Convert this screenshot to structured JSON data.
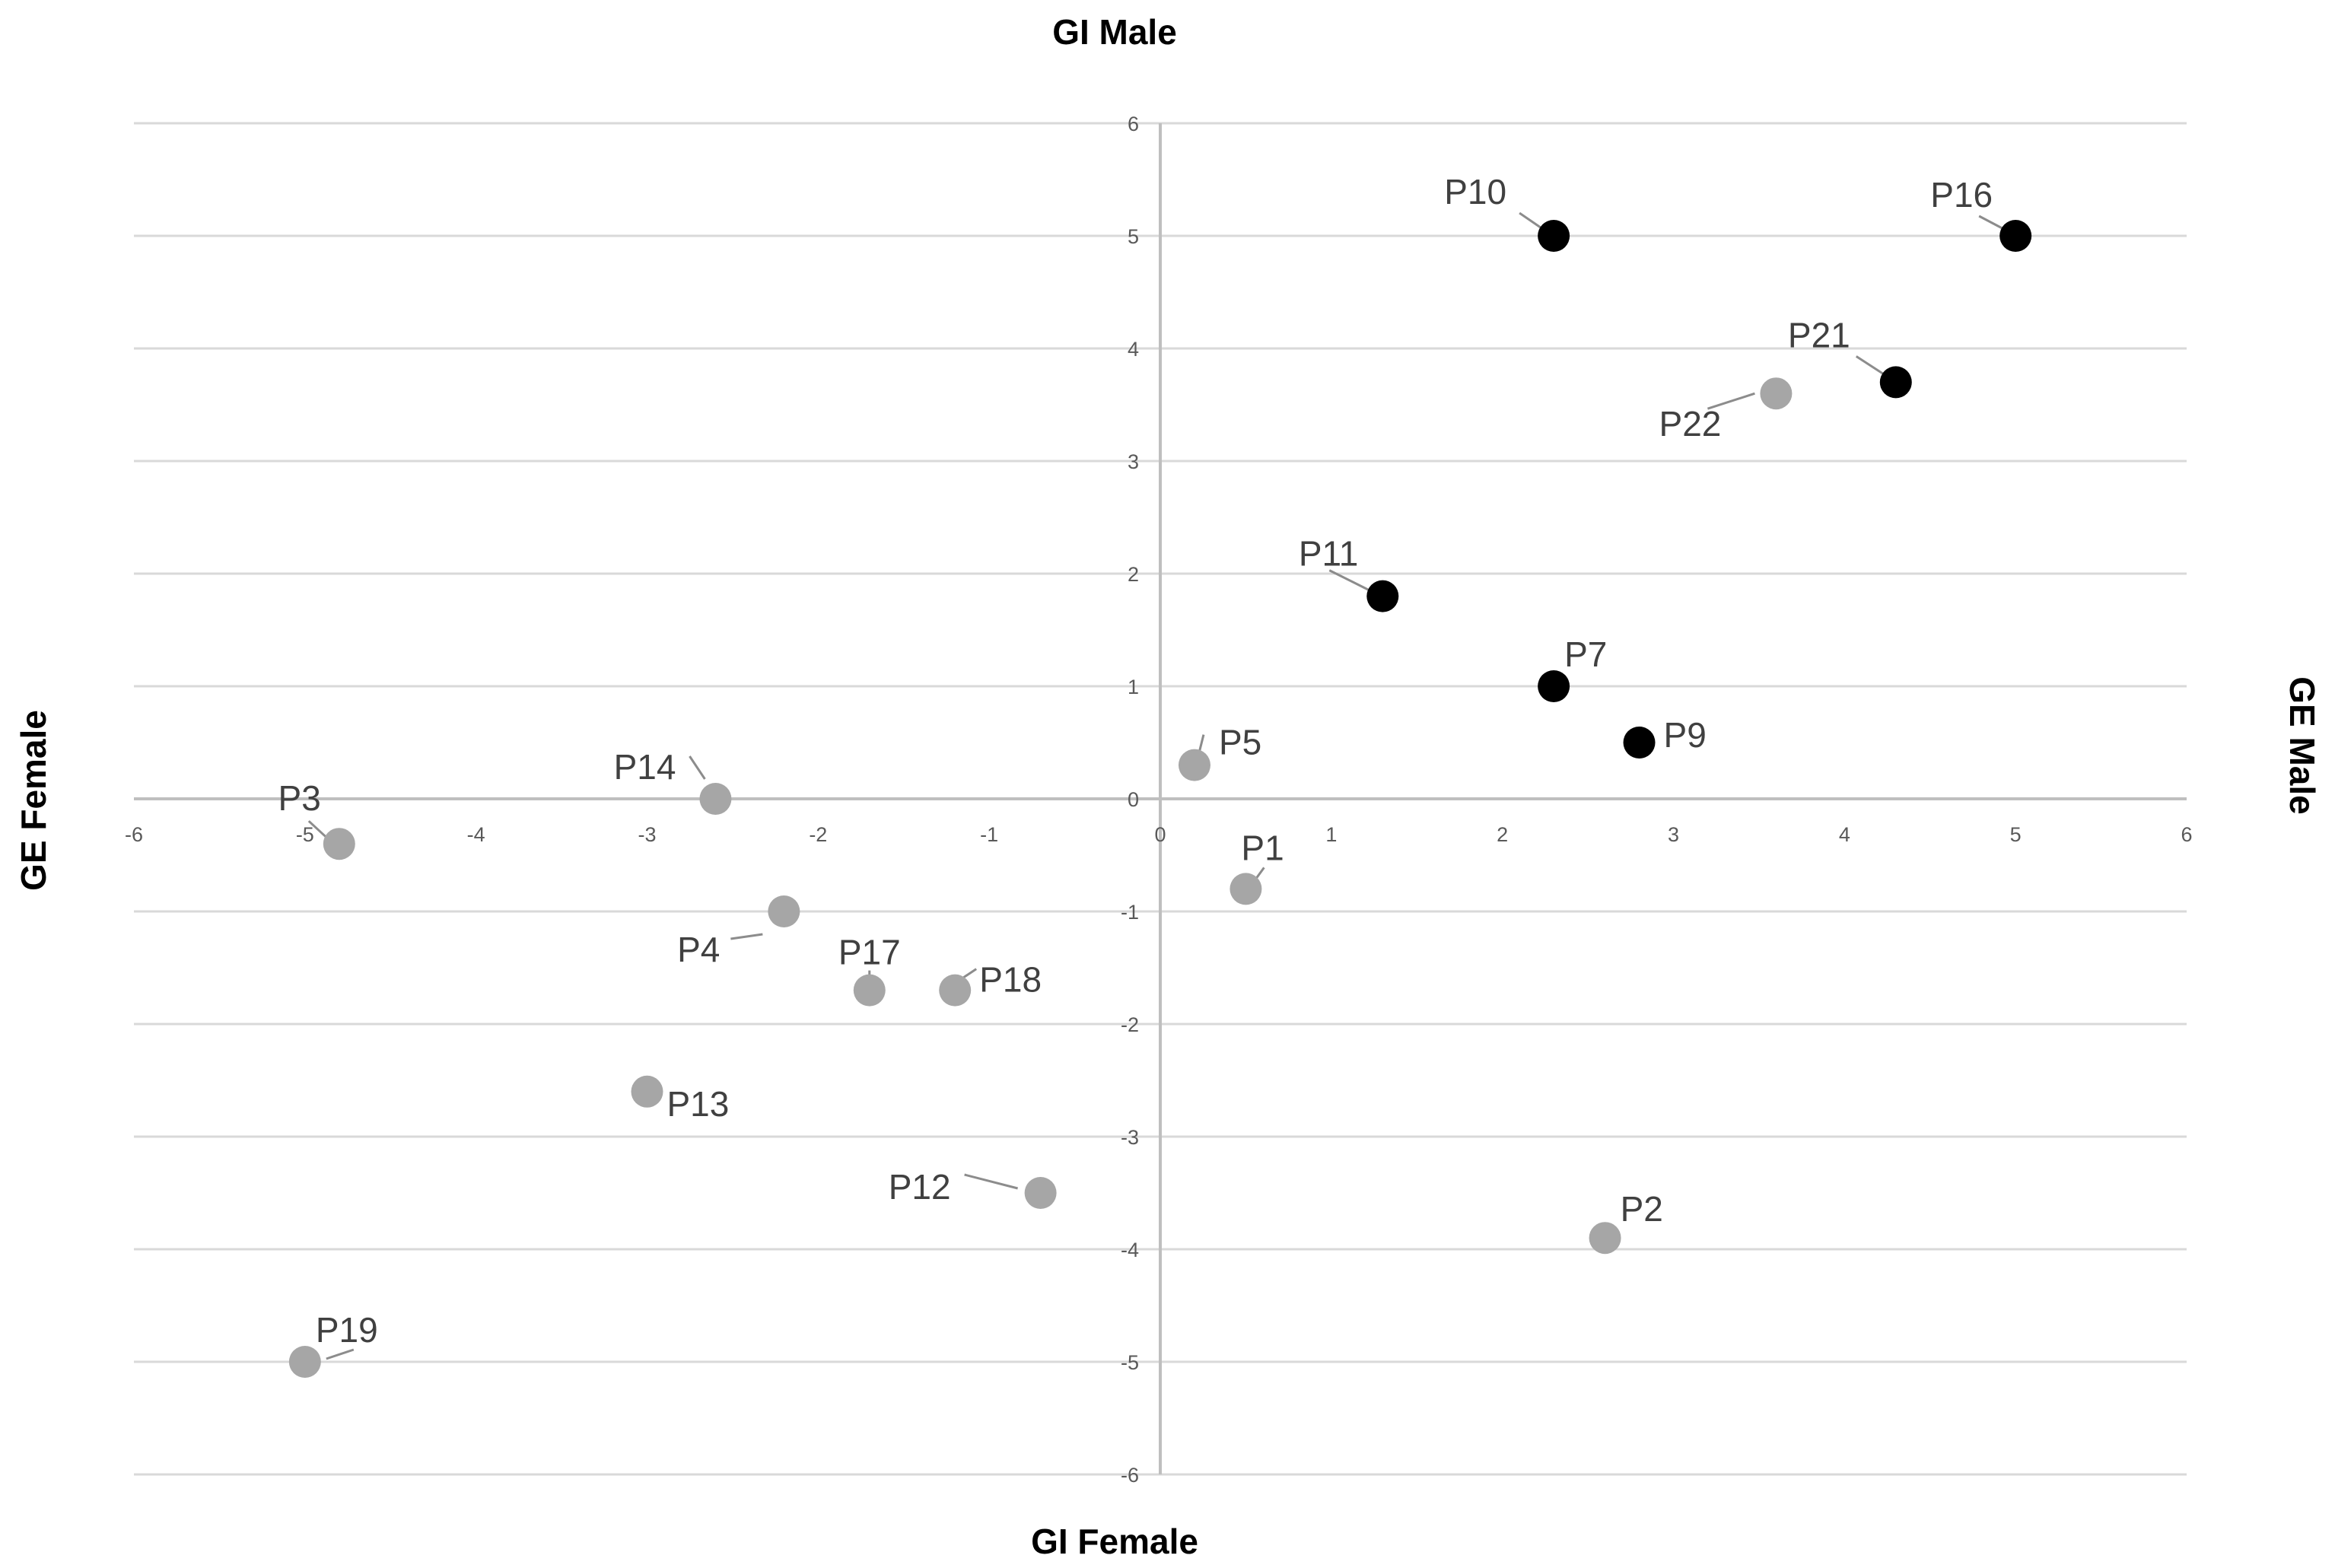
{
  "chart_data": {
    "type": "scatter",
    "title": "",
    "axis_titles": {
      "top": "GI Male",
      "bottom": "GI Female",
      "left": "GE Female",
      "right": "GE Male"
    },
    "xlim": [
      -6,
      6
    ],
    "ylim": [
      -6,
      6
    ],
    "x_ticks": [
      -6,
      -5,
      -4,
      -3,
      -2,
      -1,
      0,
      1,
      2,
      3,
      4,
      5,
      6
    ],
    "y_ticks": [
      6,
      5,
      4,
      3,
      2,
      1,
      0,
      -1,
      -2,
      -3,
      -4,
      -5,
      -6
    ],
    "grid": "horizontal",
    "colors": {
      "black": "#000000",
      "gray": "#a6a6a6",
      "grid": "#d9d9d9",
      "axis": "#bfbfbf",
      "leader": "#8c8c8c"
    },
    "points": [
      {
        "label": "P10",
        "x": 2.3,
        "y": 5.0,
        "color": "black"
      },
      {
        "label": "P16",
        "x": 5.0,
        "y": 5.0,
        "color": "black"
      },
      {
        "label": "P21",
        "x": 4.3,
        "y": 3.7,
        "color": "black"
      },
      {
        "label": "P22",
        "x": 3.6,
        "y": 3.6,
        "color": "gray"
      },
      {
        "label": "P11",
        "x": 1.3,
        "y": 1.8,
        "color": "black"
      },
      {
        "label": "P7",
        "x": 2.3,
        "y": 1.0,
        "color": "black"
      },
      {
        "label": "P9",
        "x": 2.8,
        "y": 0.5,
        "color": "black"
      },
      {
        "label": "P5",
        "x": 0.2,
        "y": 0.3,
        "color": "gray"
      },
      {
        "label": "P14",
        "x": -2.6,
        "y": 0.0,
        "color": "gray"
      },
      {
        "label": "P3",
        "x": -4.8,
        "y": -0.4,
        "color": "gray"
      },
      {
        "label": "P1",
        "x": 0.5,
        "y": -0.8,
        "color": "gray"
      },
      {
        "label": "P4",
        "x": -2.2,
        "y": -1.0,
        "color": "gray"
      },
      {
        "label": "P17",
        "x": -1.7,
        "y": -1.7,
        "color": "gray"
      },
      {
        "label": "P18",
        "x": -1.2,
        "y": -1.7,
        "color": "gray"
      },
      {
        "label": "P13",
        "x": -3.0,
        "y": -2.6,
        "color": "gray"
      },
      {
        "label": "P12",
        "x": -0.7,
        "y": -3.5,
        "color": "gray"
      },
      {
        "label": "P2",
        "x": 2.6,
        "y": -3.9,
        "color": "gray"
      },
      {
        "label": "P19",
        "x": -5.0,
        "y": -5.0,
        "color": "gray"
      }
    ]
  }
}
